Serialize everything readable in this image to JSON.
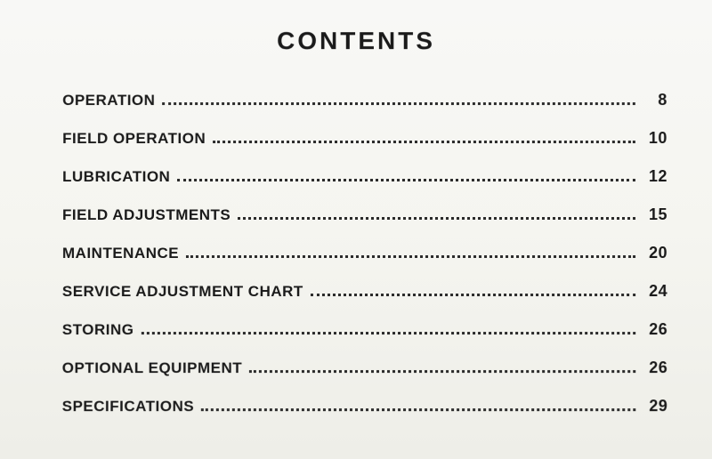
{
  "title": "CONTENTS",
  "title_fontsize": 28,
  "title_letterspacing": 3,
  "entry_fontsize": 17,
  "page_fontsize": 18,
  "text_color": "#1a1a1a",
  "dot_color": "#2a2a2a",
  "background_color": "#f5f5f0",
  "entries": [
    {
      "label": "OPERATION",
      "page": "8"
    },
    {
      "label": "FIELD OPERATION",
      "page": "10"
    },
    {
      "label": "LUBRICATION",
      "page": "12"
    },
    {
      "label": "FIELD ADJUSTMENTS",
      "page": "15"
    },
    {
      "label": "MAINTENANCE",
      "page": "20"
    },
    {
      "label": "SERVICE ADJUSTMENT CHART",
      "page": "24"
    },
    {
      "label": "STORING",
      "page": "26"
    },
    {
      "label": "OPTIONAL EQUIPMENT",
      "page": "26"
    },
    {
      "label": "SPECIFICATIONS",
      "page": "29"
    }
  ]
}
